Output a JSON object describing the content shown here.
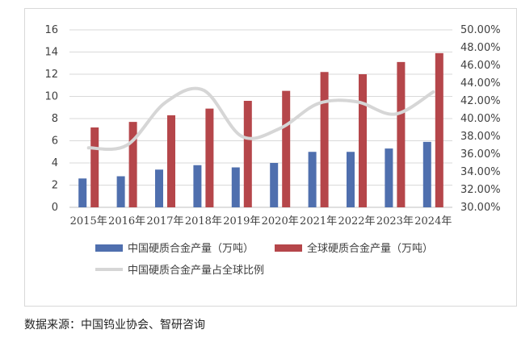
{
  "chart_data": {
    "type": "bar",
    "categories": [
      "2015年",
      "2016年",
      "2017年",
      "2018年",
      "2019年",
      "2020年",
      "2021年",
      "2022年",
      "2023年",
      "2024年"
    ],
    "series": [
      {
        "name": "中国硬质合金产量（万吨）",
        "type": "bar",
        "axis": "left",
        "values": [
          2.6,
          2.8,
          3.4,
          3.8,
          3.6,
          4.0,
          5.0,
          5.0,
          5.3,
          5.9
        ],
        "color": "#4f6fae"
      },
      {
        "name": "全球硬质合金产量（万吨）",
        "type": "bar",
        "axis": "left",
        "values": [
          7.2,
          7.7,
          8.3,
          8.9,
          9.6,
          10.5,
          12.2,
          12.0,
          13.1,
          13.9
        ],
        "color": "#b5464a"
      },
      {
        "name": "中国硬质合金产量占全球比例",
        "type": "line",
        "axis": "right",
        "values": [
          0.367,
          0.37,
          0.418,
          0.432,
          0.38,
          0.389,
          0.417,
          0.419,
          0.405,
          0.43
        ],
        "color": "#d6d6d6"
      }
    ],
    "y_left": {
      "min": 0,
      "max": 16,
      "ticks": [
        "0",
        "2",
        "4",
        "6",
        "8",
        "10",
        "12",
        "14",
        "16"
      ]
    },
    "y_right": {
      "min": 0.3,
      "max": 0.5,
      "ticks": [
        "30.00%",
        "32.00%",
        "34.00%",
        "36.00%",
        "38.00%",
        "40.00%",
        "42.00%",
        "44.00%",
        "46.00%",
        "48.00%",
        "50.00%"
      ]
    },
    "grid": true,
    "legend_position": "bottom"
  },
  "source_text": "数据来源：中国钨业协会、智研咨询"
}
